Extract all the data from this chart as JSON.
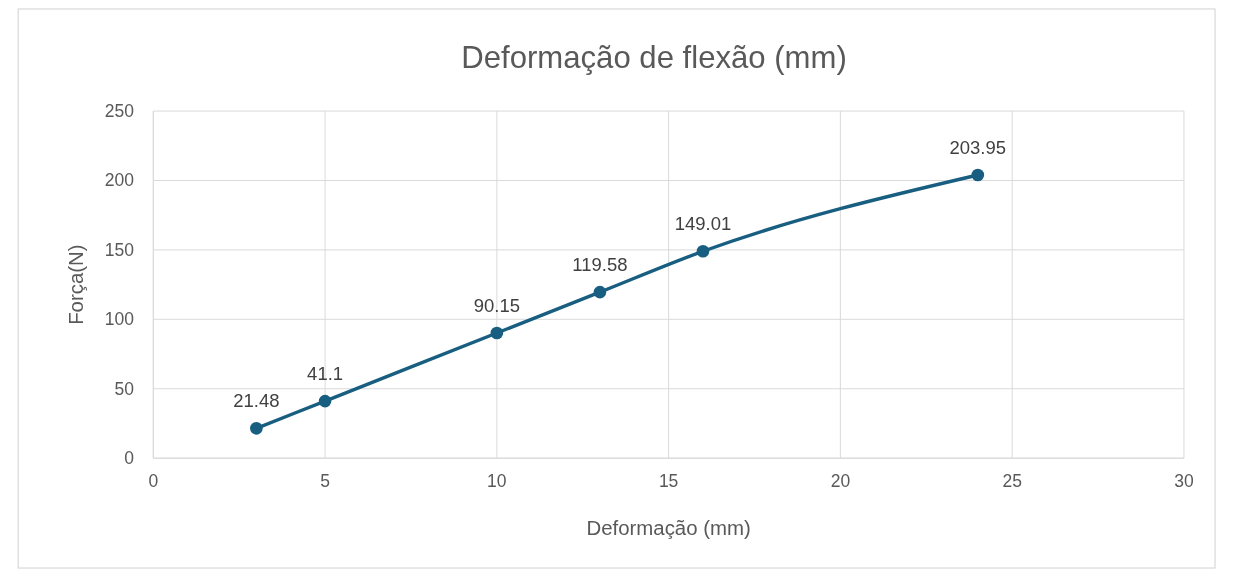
{
  "chart_data": {
    "type": "line",
    "title": "Deformação de flexão  (mm)",
    "xlabel": "Deformação (mm)",
    "ylabel": "Força(N)",
    "x": [
      3,
      5,
      10,
      13,
      16,
      24
    ],
    "series": [
      {
        "color": "#185e80",
        "values": [
          21.48,
          41.1,
          90.15,
          119.58,
          149.01,
          203.95
        ]
      }
    ],
    "xlim": [
      0,
      30
    ],
    "xticks": [
      0,
      5,
      10,
      15,
      20,
      25,
      30
    ],
    "ylim": [
      0,
      250
    ],
    "yticks": [
      0,
      50,
      100,
      150,
      200,
      250
    ],
    "grid": true,
    "marker": "circle",
    "line_style": "solid",
    "data_labels": true
  }
}
